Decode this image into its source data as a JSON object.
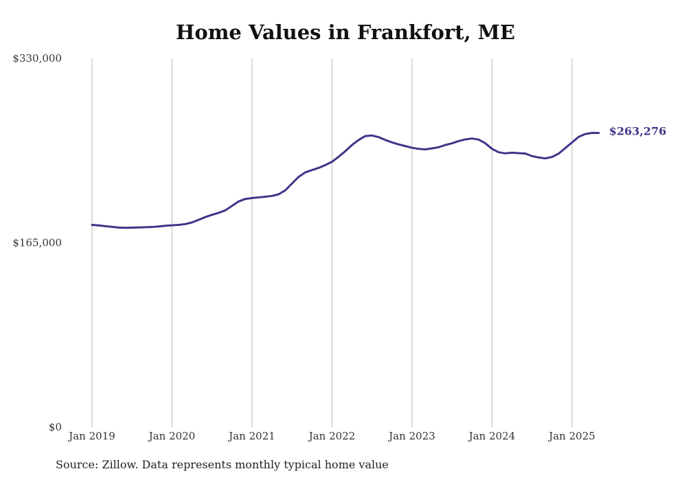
{
  "chart_data": {
    "type": "line",
    "title": "Home Values in Frankfort, ME",
    "source_note": "Source: Zillow. Data represents monthly typical home value",
    "ylim": [
      0,
      330000
    ],
    "y_ticks": [
      {
        "value": 0,
        "label": "$0"
      },
      {
        "value": 165000,
        "label": "$165,000"
      },
      {
        "value": 330000,
        "label": "$330,000"
      }
    ],
    "x_ticks": [
      {
        "value": "2019-01",
        "label": "Jan 2019"
      },
      {
        "value": "2020-01",
        "label": "Jan 2020"
      },
      {
        "value": "2021-01",
        "label": "Jan 2021"
      },
      {
        "value": "2022-01",
        "label": "Jan 2022"
      },
      {
        "value": "2023-01",
        "label": "Jan 2023"
      },
      {
        "value": "2024-01",
        "label": "Jan 2024"
      },
      {
        "value": "2025-01",
        "label": "Jan 2025"
      }
    ],
    "grid": "vertical",
    "line_color": "#3d3589",
    "end_label": "$263,276",
    "series": [
      {
        "x": [
          "2019-01",
          "2019-02",
          "2019-03",
          "2019-04",
          "2019-05",
          "2019-06",
          "2019-07",
          "2019-08",
          "2019-09",
          "2019-10",
          "2019-11",
          "2019-12",
          "2020-01",
          "2020-02",
          "2020-03",
          "2020-04",
          "2020-05",
          "2020-06",
          "2020-07",
          "2020-08",
          "2020-09",
          "2020-10",
          "2020-11",
          "2020-12",
          "2021-01",
          "2021-02",
          "2021-03",
          "2021-04",
          "2021-05",
          "2021-06",
          "2021-07",
          "2021-08",
          "2021-09",
          "2021-10",
          "2021-11",
          "2021-12",
          "2022-01",
          "2022-02",
          "2022-03",
          "2022-04",
          "2022-05",
          "2022-06",
          "2022-07",
          "2022-08",
          "2022-09",
          "2022-10",
          "2022-11",
          "2022-12",
          "2023-01",
          "2023-02",
          "2023-03",
          "2023-04",
          "2023-05",
          "2023-06",
          "2023-07",
          "2023-08",
          "2023-09",
          "2023-10",
          "2023-11",
          "2023-12",
          "2024-01",
          "2024-02",
          "2024-03",
          "2024-04",
          "2024-05",
          "2024-06",
          "2024-07",
          "2024-08",
          "2024-09",
          "2024-10",
          "2024-11",
          "2024-12",
          "2025-01",
          "2025-02",
          "2025-03",
          "2025-04",
          "2025-05"
        ],
        "values": [
          181000,
          180500,
          179800,
          179200,
          178600,
          178400,
          178500,
          178700,
          178900,
          179100,
          179600,
          180200,
          180600,
          181000,
          181700,
          183200,
          185500,
          188000,
          190000,
          191800,
          194000,
          198000,
          202000,
          204200,
          205000,
          205600,
          206200,
          206900,
          208400,
          212000,
          218000,
          224000,
          228000,
          230000,
          232000,
          234500,
          237500,
          242000,
          247000,
          252500,
          257000,
          260500,
          261000,
          259500,
          257000,
          254800,
          253000,
          251500,
          250000,
          249000,
          248600,
          249400,
          250500,
          252500,
          254000,
          256000,
          257500,
          258300,
          257300,
          254000,
          249000,
          246000,
          245000,
          245600,
          245200,
          244800,
          242500,
          241300,
          240500,
          241800,
          244800,
          249800,
          254800,
          259800,
          262300,
          263300,
          263276
        ]
      }
    ]
  }
}
